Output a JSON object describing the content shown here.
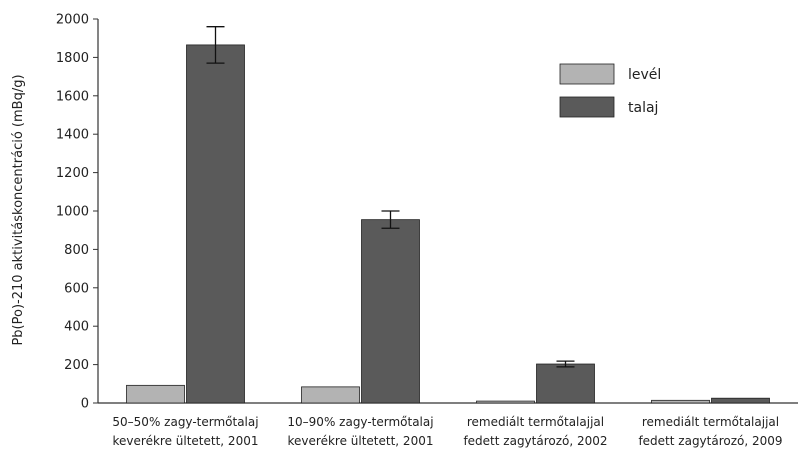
{
  "chart_data": {
    "type": "bar",
    "title": "",
    "xlabel": "",
    "ylabel": "Pb(Po)-210 aktivitáskoncentráció (mBq/g)",
    "ylim": [
      0,
      2000
    ],
    "yticks": [
      0,
      200,
      400,
      600,
      800,
      1000,
      1200,
      1400,
      1600,
      1800,
      2000
    ],
    "categories": [
      [
        "50–50% zagy-termőtalaj",
        "keverékre ültetett, 2001"
      ],
      [
        "10–90% zagy-termőtalaj",
        "keverékre ültetett, 2001"
      ],
      [
        "remediált termőtalajjal",
        "fedett zagytározó, 2002"
      ],
      [
        "remediált termőtalajjal",
        "fedett zagytározó, 2009"
      ]
    ],
    "series": [
      {
        "name": "levél",
        "color": "#b3b3b3",
        "values": [
          92,
          84,
          10,
          14
        ],
        "errors": [
          0,
          0,
          0,
          0
        ]
      },
      {
        "name": "talaj",
        "color": "#5a5a5a",
        "values": [
          1865,
          955,
          203,
          25
        ],
        "errors": [
          95,
          45,
          15,
          0
        ]
      }
    ],
    "grid": false,
    "legend_position": "top-right"
  }
}
